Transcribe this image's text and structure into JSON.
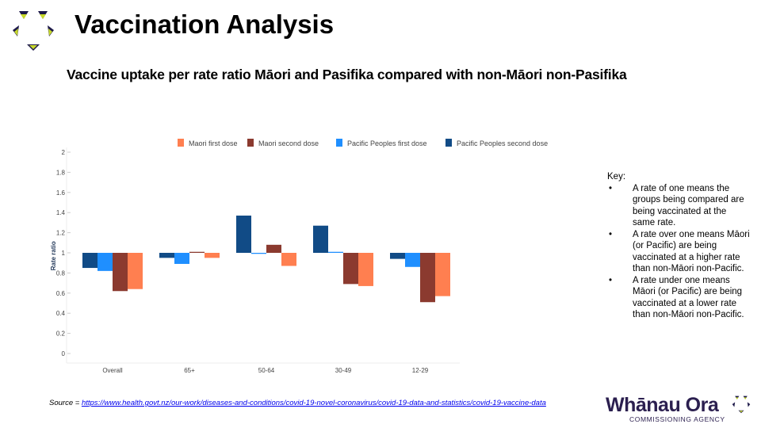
{
  "header": {
    "title": "Vaccination Analysis",
    "subtitle": "Vaccine uptake per rate ratio Māori and Pasifika compared with non-Māori non-Pasifika"
  },
  "chart_data": {
    "type": "bar",
    "ylabel": "Rate ratio",
    "baseline": 1,
    "ylim": [
      0,
      2
    ],
    "yticks": [
      "0",
      "0.2",
      "0.4",
      "0.6",
      "0.8",
      "1",
      "1.2",
      "1.4",
      "1.6",
      "1.8",
      "2"
    ],
    "categories": [
      "Overall",
      "65+",
      "50-64",
      "30-49",
      "12-29"
    ],
    "legend_position": "top",
    "series": [
      {
        "name": "Pacific Peoples second dose",
        "color": "#114b86",
        "values": [
          0.85,
          0.95,
          1.37,
          1.27,
          0.94
        ]
      },
      {
        "name": "Pacific Peoples first dose",
        "color": "#1f8fff",
        "values": [
          0.82,
          0.89,
          0.99,
          1.01,
          0.86
        ]
      },
      {
        "name": "Maori second dose",
        "color": "#8b3a2f",
        "values": [
          0.62,
          1.01,
          1.08,
          0.69,
          0.51
        ]
      },
      {
        "name": "Maori first dose",
        "color": "#ff7f50",
        "values": [
          0.64,
          0.95,
          0.87,
          0.67,
          0.57
        ]
      }
    ],
    "legend_order": [
      "Maori first dose",
      "Maori second dose",
      "Pacific Peoples first dose",
      "Pacific Peoples second dose"
    ]
  },
  "key": {
    "heading": "Key:",
    "items": [
      "A rate of one means the groups being compared are being vaccinated at the same rate.",
      "A rate over one means Māori (or Pacific) are being vaccinated at a higher rate than non-Māori non-Pacific.",
      "A rate under one means Māori (or Pacific) are being vaccinated at a lower rate than non-Māori non-Pacific."
    ]
  },
  "source": {
    "prefix": "Source = ",
    "link": "https://www.health.govt.nz/our-work/diseases-and-conditions/covid-19-novel-coronavirus/covid-19-data-and-statistics/covid-19-vaccine-data"
  },
  "brand": {
    "name": "Whānau Ora",
    "tagline": "COMMISSIONING AGENCY"
  }
}
